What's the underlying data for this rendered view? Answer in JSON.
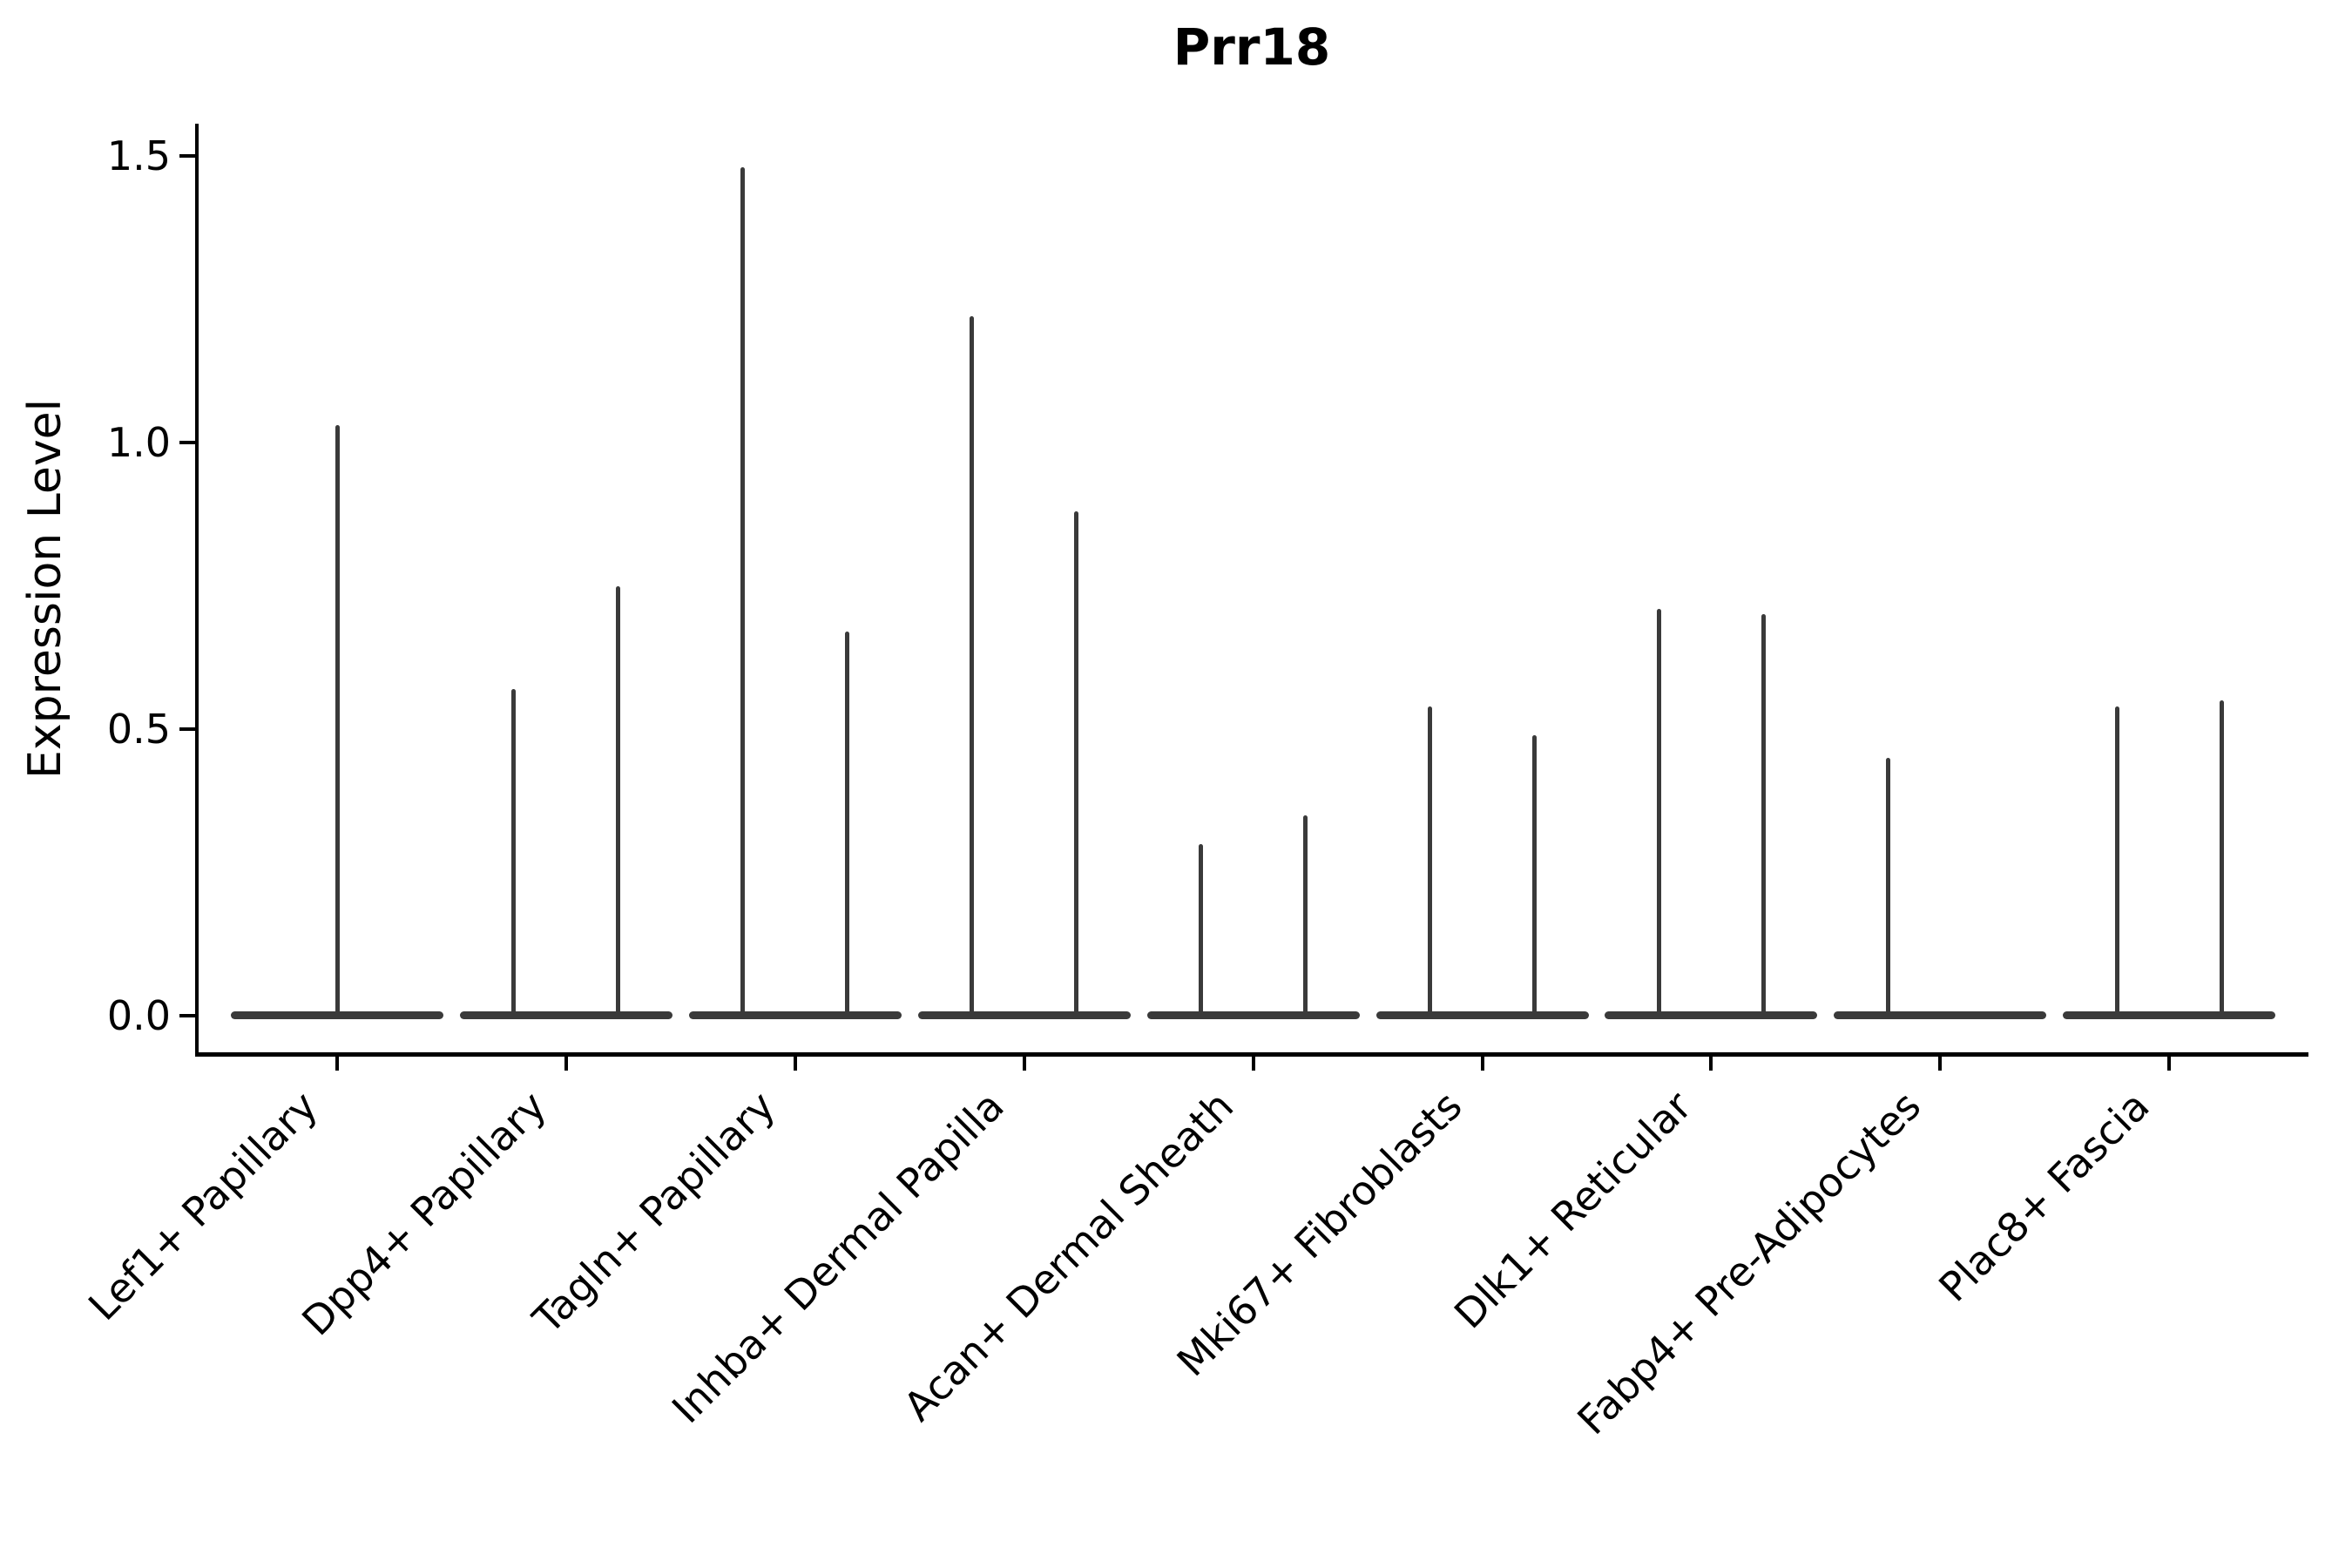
{
  "figure": {
    "title": "Prr18",
    "y_axis": {
      "label": "Expression Level",
      "tick_labels": [
        "0.0",
        "0.5",
        "1.0",
        "1.5"
      ]
    }
  },
  "chart_data": {
    "type": "violin",
    "title": "Prr18",
    "xlabel": "",
    "ylabel": "Expression Level",
    "yticks": [
      0.0,
      0.5,
      1.0,
      1.5
    ],
    "ylim": [
      -0.06,
      1.56
    ],
    "grid": false,
    "legend": null,
    "violin_color": "#3a3a3a",
    "axis_color": "#000000",
    "shape_note": "Each violin is a wide flat pancake at expression 0 with a thin vertical density needle reaching its peak value",
    "categories": [
      "Lef1+ Papillary",
      "Dpp4+ Papillary",
      "Tagln+ Papillary",
      "Inhba+ Dermal Papilla",
      "Acan+ Dermal Sheath",
      "Mki67+ Fibroblasts",
      "Dlk1+ Reticular",
      "Fabp4+ Pre-Adipocytes",
      "Plac8+ Fascia"
    ],
    "series": [
      {
        "category": "Lef1+ Papillary",
        "violins": [
          {
            "slot": "center",
            "peak": 1.03
          }
        ]
      },
      {
        "category": "Dpp4+ Papillary",
        "violins": [
          {
            "slot": "left",
            "peak": 0.57
          },
          {
            "slot": "right",
            "peak": 0.75
          }
        ]
      },
      {
        "category": "Tagln+ Papillary",
        "violins": [
          {
            "slot": "left",
            "peak": 1.48
          },
          {
            "slot": "right",
            "peak": 0.67
          }
        ]
      },
      {
        "category": "Inhba+ Dermal Papilla",
        "violins": [
          {
            "slot": "left",
            "peak": 1.22
          },
          {
            "slot": "right",
            "peak": 0.88
          }
        ]
      },
      {
        "category": "Acan+ Dermal Sheath",
        "violins": [
          {
            "slot": "left",
            "peak": 0.3
          },
          {
            "slot": "right",
            "peak": 0.35
          }
        ]
      },
      {
        "category": "Mki67+ Fibroblasts",
        "violins": [
          {
            "slot": "left",
            "peak": 0.54
          },
          {
            "slot": "right",
            "peak": 0.49
          }
        ]
      },
      {
        "category": "Dlk1+ Reticular",
        "violins": [
          {
            "slot": "left",
            "peak": 0.71
          },
          {
            "slot": "right",
            "peak": 0.7
          }
        ]
      },
      {
        "category": "Fabp4+ Pre-Adipocytes",
        "violins": [
          {
            "slot": "left",
            "peak": 0.45
          }
        ]
      },
      {
        "category": "Plac8+ Fascia",
        "violins": [
          {
            "slot": "left",
            "peak": 0.54
          },
          {
            "slot": "right",
            "peak": 0.55
          }
        ]
      }
    ]
  }
}
